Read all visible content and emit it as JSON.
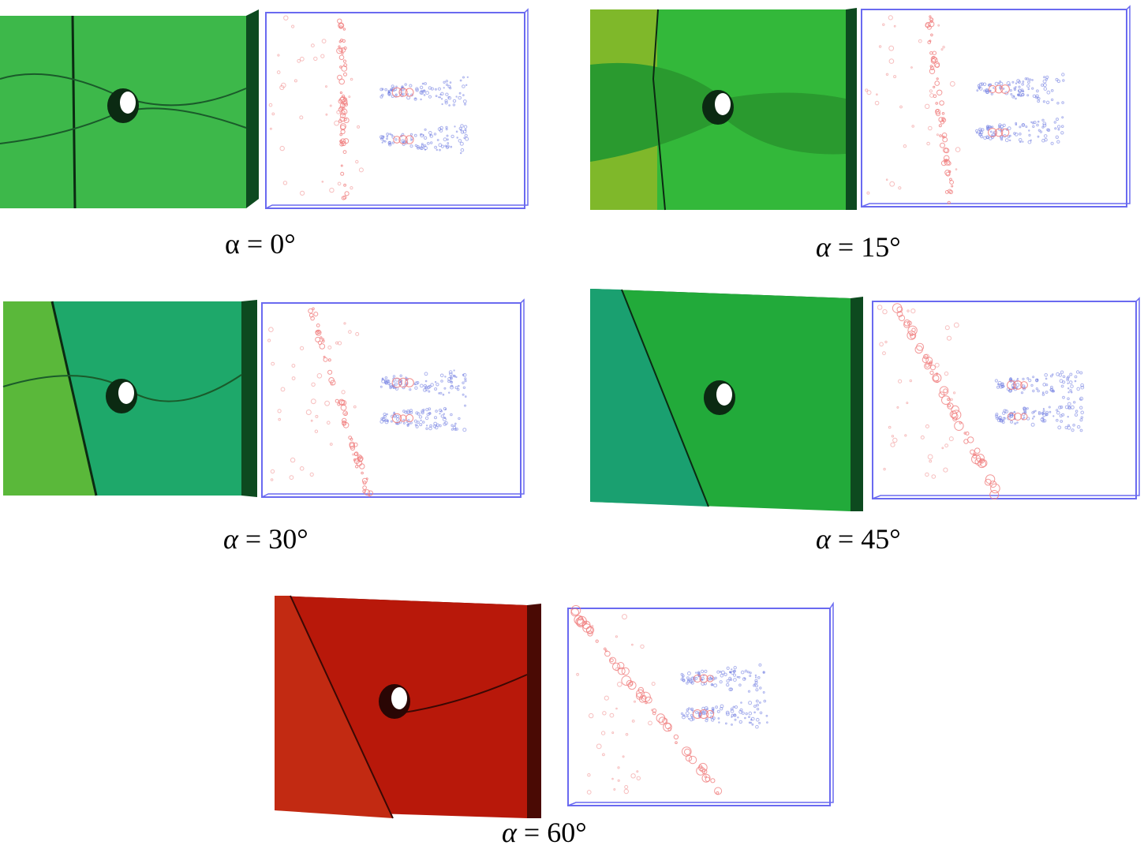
{
  "colors": {
    "green_face": "#3db84a",
    "green_dark": "#0d4a1f",
    "red_face": "#b8180a",
    "red_dark": "#4a0a04",
    "cluster_pink": "#f08080",
    "cluster_blue": "#6c78e0",
    "box_outline": "#6a6af0"
  },
  "panels": [
    {
      "id": "a0",
      "symbol": "α",
      "eq": " = ",
      "value": "0°",
      "angle": 0,
      "block": "green"
    },
    {
      "id": "a15",
      "symbol": "α",
      "eq": " = ",
      "value": "15°",
      "angle": 15,
      "block": "green"
    },
    {
      "id": "a30",
      "symbol": "α",
      "eq": " = ",
      "value": "30°",
      "angle": 30,
      "block": "green"
    },
    {
      "id": "a45",
      "symbol": "α",
      "eq": " = ",
      "value": "45°",
      "angle": 45,
      "block": "green"
    },
    {
      "id": "a60",
      "symbol": "α",
      "eq": " = ",
      "value": "60°",
      "angle": 60,
      "block": "red"
    }
  ]
}
